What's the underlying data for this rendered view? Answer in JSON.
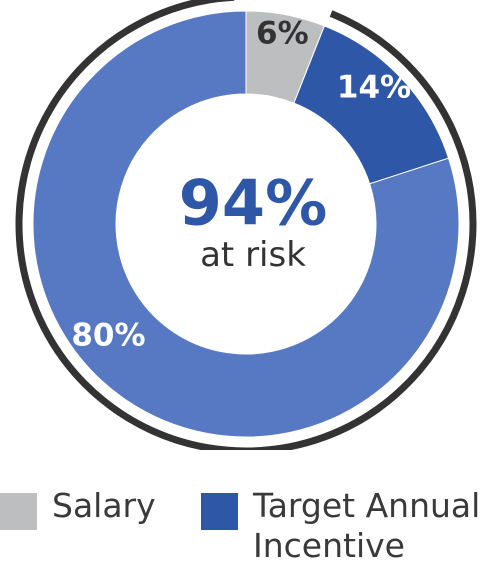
{
  "chart_data": {
    "type": "donut",
    "center_value": "94%",
    "center_label": "at risk",
    "slices": [
      {
        "label": "Salary",
        "value": 6,
        "display": "6%",
        "color": "#bdbec0",
        "label_color": "#333333"
      },
      {
        "label": "Target Annual Incentive",
        "value": 14,
        "display": "14%",
        "color": "#2e57a7",
        "label_color": "#ffffff"
      },
      {
        "label": "",
        "value": 80,
        "display": "80%",
        "color": "#5779c3",
        "label_color": "#ffffff"
      }
    ],
    "bracket": {
      "description": "dark arc around the at-risk portion",
      "covers_percent": 94,
      "color": "#333333"
    },
    "center_value_color": "#2e57a7",
    "center_label_color": "#333333"
  },
  "legend": [
    {
      "label": "Salary",
      "color": "#bdbec0"
    },
    {
      "label": "Target Annual Incentive",
      "color": "#2e57a7"
    }
  ]
}
